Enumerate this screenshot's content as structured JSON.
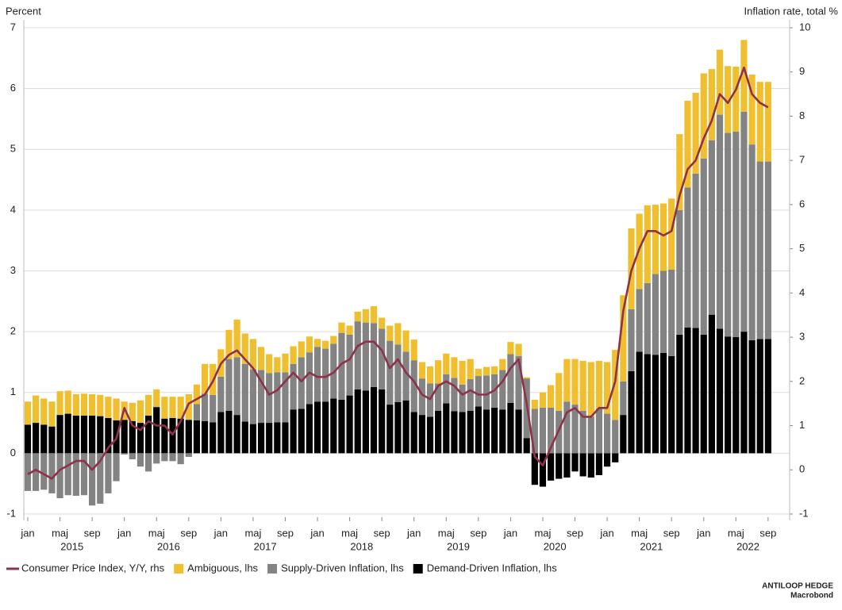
{
  "chart_data": {
    "type": "bar",
    "y_label": "Percent",
    "y2_label": "Inflation rate, total %",
    "source": [
      "ANTILOOP HEDGE",
      "Macrobond"
    ],
    "categories": [
      "jan",
      null,
      null,
      null,
      "maj",
      null,
      null,
      null,
      "sep",
      null,
      null,
      null,
      "jan",
      null,
      null,
      null,
      "maj",
      null,
      null,
      null,
      "sep",
      null,
      null,
      null,
      "jan",
      null,
      null,
      null,
      "maj",
      null,
      null,
      null,
      "sep",
      null,
      null,
      null,
      "jan",
      null,
      null,
      null,
      "maj",
      null,
      null,
      null,
      "sep",
      null,
      null,
      null,
      "jan",
      null,
      null,
      null,
      "maj",
      null,
      null,
      null,
      "sep",
      null,
      null,
      null,
      "jan",
      null,
      null,
      null,
      "maj",
      null,
      null,
      null,
      "sep",
      null,
      null,
      null,
      "jan",
      null,
      null,
      null,
      "maj",
      null,
      null,
      null,
      "sep",
      null,
      null,
      null,
      "jan",
      null,
      null,
      null,
      "maj",
      null,
      null,
      null,
      "sep"
    ],
    "years": [
      "2015",
      "2016",
      "2017",
      "2018",
      "2019",
      "2020",
      "2021",
      "2022"
    ],
    "series": [
      {
        "name": "Consumer Price Index, Y/Y, rhs",
        "type": "line",
        "axis": "y2",
        "color": "#8e3149",
        "values": [
          -0.1,
          0,
          -0.1,
          -0.2,
          0,
          0.1,
          0.2,
          0.2,
          0,
          0.2,
          0.5,
          0.7,
          1.4,
          1.0,
          0.9,
          1.1,
          1.0,
          1.0,
          0.8,
          1.1,
          1.5,
          1.6,
          1.7,
          2.0,
          2.4,
          2.6,
          2.7,
          2.5,
          2.3,
          2.0,
          1.7,
          1.8,
          2.0,
          2.2,
          2.0,
          2.2,
          2.1,
          2.1,
          2.2,
          2.4,
          2.5,
          2.8,
          2.9,
          2.9,
          2.7,
          2.3,
          2.5,
          2.2,
          2.0,
          1.7,
          1.6,
          1.9,
          2.0,
          1.9,
          1.7,
          1.8,
          1.7,
          1.7,
          1.8,
          2.0,
          2.3,
          2.5,
          1.5,
          0.3,
          0.1,
          0.5,
          0.9,
          1.3,
          1.4,
          1.2,
          1.2,
          1.4,
          1.4,
          2.0,
          3.6,
          4.5,
          5.0,
          5.4,
          5.4,
          5.3,
          5.4,
          6.2,
          6.8,
          7.0,
          7.5,
          7.9,
          8.5,
          8.3,
          8.6,
          9.1,
          8.5,
          8.3,
          8.2
        ]
      },
      {
        "name": "Ambiguous, lhs",
        "type": "bar",
        "color": "#f0bf2f",
        "values": [
          0.38,
          0.45,
          0.43,
          0.41,
          0.39,
          0.38,
          0.35,
          0.36,
          0.35,
          0.35,
          0.35,
          0.36,
          0.3,
          0.3,
          0.37,
          0.34,
          0.29,
          0.36,
          0.35,
          0.36,
          0.42,
          0.32,
          0.49,
          0.51,
          0.45,
          0.48,
          0.62,
          0.5,
          0.5,
          0.38,
          0.31,
          0.25,
          0.31,
          0.29,
          0.26,
          0.26,
          0.13,
          0.13,
          0.13,
          0.17,
          0.15,
          0.16,
          0.22,
          0.28,
          0.18,
          0.25,
          0.35,
          0.35,
          0.34,
          0.27,
          0.28,
          0.38,
          0.34,
          0.34,
          0.39,
          0.33,
          0.12,
          0.14,
          0.13,
          0.18,
          0.2,
          0.2,
          0.02,
          0.15,
          0.25,
          0.37,
          0.62,
          0.7,
          0.75,
          0.82,
          0.9,
          0.79,
          0.85,
          1.15,
          1.42,
          1.33,
          1.24,
          1.28,
          1.14,
          1.11,
          1.17,
          1.25,
          1.43,
          1.33,
          1.4,
          1.17,
          1.07,
          1.1,
          1.07,
          1.18,
          1.15,
          1.31,
          1.31
        ]
      },
      {
        "name": "Supply-Driven Inflation, lhs",
        "type": "bar",
        "color": "#838383",
        "values": [
          -0.62,
          -0.62,
          -0.6,
          -0.66,
          -0.74,
          -0.69,
          -0.7,
          -0.69,
          -0.86,
          -0.83,
          -0.66,
          -0.46,
          -0.02,
          -0.1,
          -0.22,
          -0.3,
          -0.17,
          -0.13,
          -0.13,
          -0.18,
          -0.06,
          0.27,
          0.45,
          0.45,
          0.58,
          0.85,
          0.95,
          0.95,
          0.9,
          0.87,
          0.82,
          0.82,
          0.82,
          0.75,
          0.85,
          0.85,
          0.9,
          0.87,
          0.9,
          1.1,
          1.0,
          1.12,
          1.12,
          1.05,
          1.0,
          1.05,
          0.95,
          0.8,
          0.85,
          0.6,
          0.55,
          0.45,
          0.48,
          0.55,
          0.45,
          0.52,
          0.5,
          0.56,
          0.55,
          0.65,
          0.8,
          0.88,
          0.98,
          0.73,
          0.75,
          0.75,
          0.7,
          0.85,
          0.8,
          0.7,
          0.6,
          0.73,
          0.65,
          0.55,
          0.55,
          1.02,
          1.03,
          1.17,
          1.33,
          1.35,
          1.42,
          2.05,
          2.3,
          2.54,
          2.9,
          2.87,
          3.52,
          3.35,
          3.38,
          3.62,
          3.22,
          2.92,
          2.92
        ]
      },
      {
        "name": "Demand-Driven Inflation, lhs",
        "type": "bar",
        "color": "#000000",
        "values": [
          0.47,
          0.5,
          0.47,
          0.44,
          0.63,
          0.65,
          0.62,
          0.62,
          0.62,
          0.61,
          0.58,
          0.54,
          0.55,
          0.53,
          0.5,
          0.62,
          0.76,
          0.57,
          0.58,
          0.57,
          0.55,
          0.54,
          0.53,
          0.51,
          0.68,
          0.7,
          0.63,
          0.52,
          0.48,
          0.5,
          0.5,
          0.51,
          0.51,
          0.72,
          0.73,
          0.81,
          0.85,
          0.85,
          0.9,
          0.88,
          0.95,
          1.05,
          1.03,
          1.09,
          1.05,
          0.8,
          0.84,
          0.87,
          0.68,
          0.63,
          0.6,
          0.7,
          0.82,
          0.69,
          0.68,
          0.7,
          0.77,
          0.72,
          0.75,
          0.72,
          0.83,
          0.72,
          0.25,
          -0.52,
          -0.55,
          -0.45,
          -0.42,
          -0.4,
          -0.3,
          -0.38,
          -0.4,
          -0.36,
          -0.22,
          -0.15,
          0.63,
          1.35,
          1.67,
          1.63,
          1.62,
          1.65,
          1.6,
          1.95,
          2.07,
          2.06,
          1.95,
          2.28,
          2.05,
          1.92,
          1.91,
          2.0,
          1.86,
          1.88,
          1.88
        ]
      }
    ],
    "ylim": [
      -1,
      7
    ],
    "yticks": [
      -1,
      0,
      1,
      2,
      3,
      4,
      5,
      6,
      7
    ],
    "y2lim": [
      -1,
      10
    ],
    "y2ticks": [
      -1,
      0,
      1,
      2,
      3,
      4,
      5,
      6,
      7,
      8,
      9,
      10
    ],
    "grid": true,
    "legend": "bottom"
  }
}
